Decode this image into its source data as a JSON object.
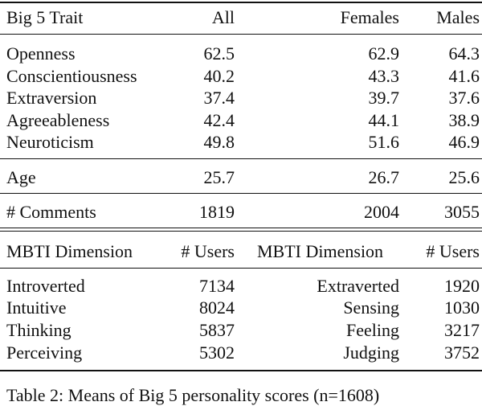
{
  "table1": {
    "header": [
      "Big 5 Trait",
      "All",
      "Females",
      "Males"
    ],
    "rows": [
      [
        "Openness",
        62.5,
        62.9,
        64.3
      ],
      [
        "Conscientiousness",
        40.2,
        43.3,
        41.6
      ],
      [
        "Extraversion",
        37.4,
        39.7,
        37.6
      ],
      [
        "Agreeableness",
        42.4,
        44.1,
        38.9
      ],
      [
        "Neuroticism",
        49.8,
        51.6,
        46.9
      ],
      [
        "Age",
        25.7,
        26.7,
        25.6
      ],
      [
        "# Comments",
        1819,
        2004,
        3055
      ]
    ]
  },
  "table2": {
    "header": [
      "MBTI Dimension",
      "# Users",
      "MBTI Dimension",
      "# Users"
    ],
    "rows": [
      [
        "Introverted",
        7134,
        "Extraverted",
        1920
      ],
      [
        "Intuitive",
        8024,
        "Sensing",
        1030
      ],
      [
        "Thinking",
        5837,
        "Feeling",
        3217
      ],
      [
        "Perceiving",
        5302,
        "Judging",
        3752
      ]
    ]
  },
  "caption": "Table 2: Means of Big 5 personality scores (n=1608)"
}
